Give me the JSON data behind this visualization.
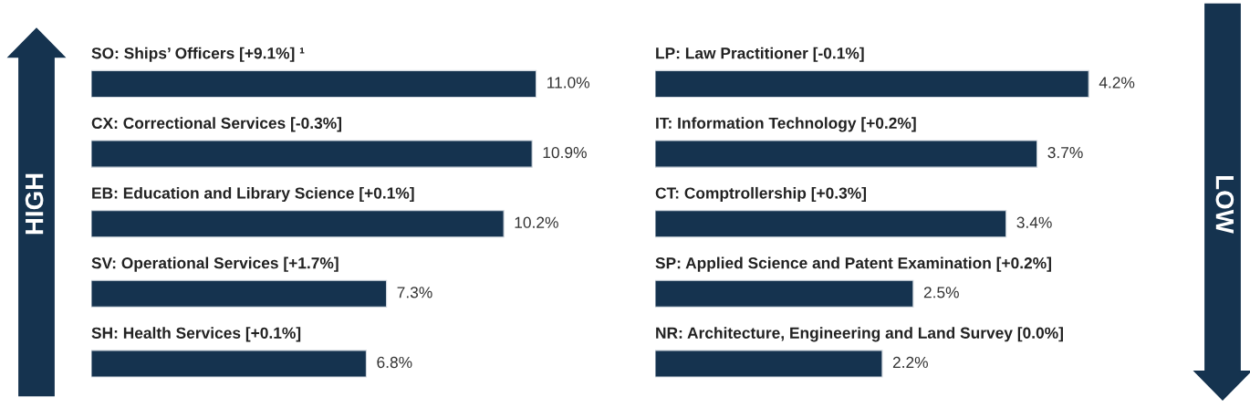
{
  "chart_data": [
    {
      "type": "bar",
      "orientation": "horizontal",
      "data_labels": true,
      "color": "#15334f",
      "categories": [
        "SO: Ships’ Officers [+9.1%] ¹",
        "CX: Correctional Services [-0.3%]",
        "EB: Education and Library Science [+0.1%]",
        "SV: Operational Services [+1.7%]",
        "SH: Health Services [+0.1%]"
      ],
      "values": [
        11.0,
        10.9,
        10.2,
        7.3,
        6.8
      ],
      "value_labels": [
        "11.0%",
        "10.9%",
        "10.2%",
        "7.3%",
        "6.8%"
      ],
      "annotations": [
        "HIGH"
      ]
    },
    {
      "type": "bar",
      "orientation": "horizontal",
      "data_labels": true,
      "color": "#15334f",
      "categories": [
        "LP: Law Practitioner [-0.1%]",
        "IT: Information Technology [+0.2%]",
        "CT: Comptrollership [+0.3%]",
        "SP: Applied Science and Patent Examination [+0.2%]",
        "NR: Architecture, Engineering and Land Survey [0.0%]"
      ],
      "values": [
        4.2,
        3.7,
        3.4,
        2.5,
        2.2
      ],
      "value_labels": [
        "4.2%",
        "3.7%",
        "3.4%",
        "2.5%",
        "2.2%"
      ],
      "annotations": [
        "LOW"
      ]
    }
  ]
}
